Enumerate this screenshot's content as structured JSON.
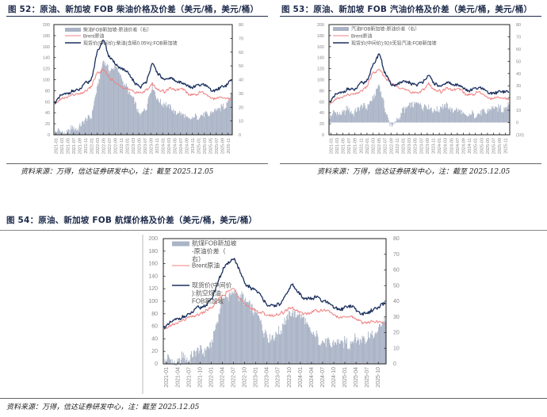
{
  "figures": [
    {
      "id": "fig52",
      "title": "图 52：原油、新加坡 FOB 柴油价格及价差（美元/桶，美元/桶）",
      "source": "资料来源：万得，信达证券研发中心，注：截至 2025.12.05"
    },
    {
      "id": "fig53",
      "title": "图 53：原油、新加坡 FOB 汽油价格及价差（美元/桶，美元/桶）",
      "source": "资料来源：万得，信达证券研发中心，注：截至 2025.12.05"
    },
    {
      "id": "fig54",
      "title": "图 54：原油、新加坡 FOB 航煤价格及价差（美元/桶，美元/桶）",
      "source": "资料来源：万得，信达证券研发中心，注：截至 2025.12.05"
    }
  ],
  "chart_data": [
    {
      "type": "line",
      "title": "原油、新加坡 FOB 柴油价格及价差（美元/桶，美元/桶）",
      "xlabel": "",
      "ylabel": "美元/桶",
      "y2label": "美元/桶",
      "ylim": [
        0,
        200
      ],
      "y2lim": [
        0,
        80
      ],
      "yticks": [
        0,
        20,
        40,
        60,
        80,
        100,
        120,
        140,
        160,
        180,
        200
      ],
      "y2ticks": [
        0,
        10,
        20,
        30,
        40,
        50,
        60,
        70,
        80
      ],
      "grid": false,
      "legend_position": "upper-left inside",
      "x": [
        "2021-01",
        "2021-03",
        "2021-05",
        "2021-07",
        "2021-09",
        "2021-11",
        "2022-01",
        "2022-03",
        "2022-05",
        "2022-07",
        "2022-09",
        "2022-11",
        "2023-01",
        "2023-03",
        "2023-05",
        "2023-07",
        "2023-09",
        "2023-11",
        "2024-01",
        "2024-03",
        "2024-05",
        "2024-07",
        "2024-09",
        "2024-11",
        "2025-01",
        "2025-03",
        "2025-05",
        "2025-07",
        "2025-09",
        "2025-11"
      ],
      "series": [
        {
          "name": "柴油FOB新加坡-原油价差（右）",
          "type": "area",
          "axis": "right",
          "color": "#aab4c6",
          "values": [
            3,
            2,
            3,
            4,
            6,
            10,
            14,
            35,
            55,
            45,
            50,
            40,
            32,
            25,
            14,
            20,
            35,
            25,
            22,
            20,
            16,
            14,
            12,
            13,
            15,
            15,
            16,
            18,
            22,
            28
          ]
        },
        {
          "name": "Brent原油",
          "type": "line",
          "axis": "left",
          "color": "#f08080",
          "values": [
            55,
            64,
            68,
            74,
            74,
            80,
            88,
            112,
            118,
            105,
            92,
            88,
            84,
            78,
            76,
            80,
            94,
            82,
            78,
            84,
            82,
            82,
            74,
            73,
            78,
            70,
            65,
            68,
            67,
            63
          ]
        },
        {
          "name": "现货价(中间价):柴油(含硫0.05%):FOB新加坡",
          "type": "line",
          "axis": "left",
          "color": "#1b2f5e",
          "values": [
            58,
            70,
            74,
            80,
            82,
            92,
            102,
            150,
            175,
            140,
            128,
            120,
            112,
            96,
            88,
            96,
            128,
            110,
            100,
            104,
            98,
            94,
            88,
            86,
            92,
            88,
            80,
            86,
            88,
            98
          ]
        }
      ]
    },
    {
      "type": "line",
      "title": "原油、新加坡 FOB 汽油价格及价差（美元/桶，美元/桶）",
      "xlabel": "",
      "ylabel": "美元/桶",
      "y2label": "美元/桶",
      "ylim": [
        0,
        200
      ],
      "y2lim": [
        -10,
        80
      ],
      "yticks": [
        0,
        20,
        40,
        60,
        80,
        100,
        120,
        140,
        160,
        180,
        200
      ],
      "y2ticks": [
        "(10)",
        0,
        10,
        20,
        30,
        40,
        50,
        60,
        70,
        80
      ],
      "grid": false,
      "legend_position": "upper-left inside",
      "x": [
        "2021-01",
        "2021-03",
        "2021-05",
        "2021-07",
        "2021-09",
        "2021-11",
        "2022-01",
        "2022-03",
        "2022-05",
        "2022-07",
        "2022-09",
        "2022-11",
        "2023-01",
        "2023-03",
        "2023-05",
        "2023-07",
        "2023-09",
        "2023-11",
        "2024-01",
        "2024-03",
        "2024-05",
        "2024-07",
        "2024-09",
        "2024-11",
        "2025-01",
        "2025-03",
        "2025-05",
        "2025-07",
        "2025-09",
        "2025-11"
      ],
      "series": [
        {
          "name": "汽油FOB新加坡-原油价差（右）",
          "type": "area",
          "axis": "right",
          "color": "#aab4c6",
          "values": [
            6,
            8,
            9,
            10,
            9,
            12,
            14,
            20,
            32,
            8,
            -4,
            2,
            10,
            14,
            16,
            14,
            12,
            10,
            12,
            14,
            10,
            9,
            6,
            7,
            8,
            9,
            10,
            11,
            12,
            13
          ]
        },
        {
          "name": "Brent原油",
          "type": "line",
          "axis": "left",
          "color": "#f08080",
          "values": [
            55,
            64,
            68,
            74,
            74,
            80,
            88,
            112,
            118,
            105,
            92,
            88,
            84,
            78,
            76,
            80,
            94,
            82,
            78,
            84,
            82,
            82,
            74,
            73,
            78,
            70,
            65,
            68,
            67,
            63
          ]
        },
        {
          "name": "现货价(中间价):92#无铅汽油:FOB新加坡",
          "type": "line",
          "axis": "left",
          "color": "#1b2f5e",
          "values": [
            60,
            72,
            76,
            84,
            82,
            92,
            100,
            125,
            150,
            110,
            90,
            92,
            96,
            94,
            92,
            96,
            106,
            92,
            88,
            96,
            92,
            90,
            82,
            80,
            86,
            82,
            76,
            78,
            78,
            76
          ]
        }
      ]
    },
    {
      "type": "line",
      "title": "原油、新加坡 FOB 航煤价格及价差（美元/桶，美元/桶）",
      "xlabel": "",
      "ylabel": "美元/桶",
      "y2label": "美元/桶",
      "ylim": [
        0,
        200
      ],
      "y2lim": [
        0,
        80
      ],
      "yticks": [
        0,
        20,
        40,
        60,
        80,
        100,
        120,
        140,
        160,
        180,
        200
      ],
      "y2ticks": [
        0,
        10,
        20,
        30,
        40,
        50,
        60,
        70,
        80
      ],
      "grid": false,
      "legend_position": "upper-left inside",
      "x": [
        "2021-01",
        "2021-04",
        "2021-07",
        "2021-10",
        "2022-01",
        "2022-04",
        "2022-07",
        "2022-10",
        "2023-01",
        "2023-04",
        "2023-07",
        "2023-10",
        "2024-01",
        "2024-04",
        "2024-07",
        "2024-10",
        "2025-01",
        "2025-04",
        "2025-07",
        "2025-10"
      ],
      "series": [
        {
          "name": "航煤FOB新加坡-原油价差（右）",
          "type": "area",
          "axis": "right",
          "color": "#aab4c6",
          "values": [
            3,
            2,
            4,
            8,
            12,
            40,
            45,
            40,
            32,
            15,
            22,
            34,
            28,
            18,
            14,
            12,
            14,
            16,
            18,
            28
          ]
        },
        {
          "name": "Brent原油",
          "type": "line",
          "axis": "left",
          "color": "#f08080",
          "values": [
            55,
            64,
            74,
            80,
            88,
            110,
            120,
            94,
            84,
            78,
            80,
            90,
            78,
            86,
            84,
            74,
            76,
            66,
            68,
            63
          ]
        },
        {
          "name": "现货价(中间价):航空煤油:FOB新加坡",
          "type": "line",
          "axis": "left",
          "color": "#1b2f5e",
          "values": [
            58,
            70,
            78,
            90,
            100,
            150,
            170,
            125,
            118,
            90,
            96,
            128,
            104,
            106,
            98,
            88,
            92,
            80,
            86,
            96
          ]
        }
      ]
    }
  ]
}
